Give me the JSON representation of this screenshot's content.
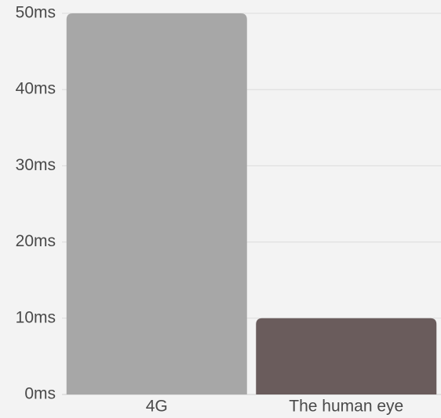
{
  "chart_data": {
    "type": "bar",
    "title": "",
    "xlabel": "",
    "ylabel": "",
    "categories": [
      "4G",
      "The human eye"
    ],
    "values": [
      50,
      10
    ],
    "colors": [
      "#a7a7a7",
      "#6a5c5c"
    ],
    "ylim": [
      0,
      50
    ],
    "yticks": [
      0,
      10,
      20,
      30,
      40,
      50
    ],
    "ytick_labels": [
      "0ms",
      "10ms",
      "20ms",
      "30ms",
      "40ms",
      "50ms"
    ],
    "grid": true,
    "legend": "none"
  }
}
